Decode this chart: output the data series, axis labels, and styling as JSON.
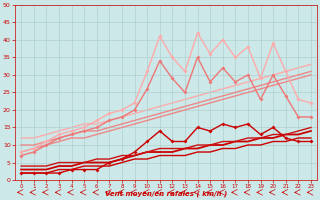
{
  "xlabel": "Vent moyen/en rafales ( km/h )",
  "ylabel": "",
  "xlim": [
    -0.5,
    23.5
  ],
  "ylim": [
    0,
    50
  ],
  "xticks": [
    0,
    1,
    2,
    3,
    4,
    5,
    6,
    7,
    8,
    9,
    10,
    11,
    12,
    13,
    14,
    15,
    16,
    17,
    18,
    19,
    20,
    21,
    22,
    23
  ],
  "yticks": [
    0,
    5,
    10,
    15,
    20,
    25,
    30,
    35,
    40,
    45,
    50
  ],
  "bg_color": "#cce8e8",
  "grid_color": "#b0d0d0",
  "lines": [
    {
      "y": [
        2,
        2,
        2,
        3,
        3,
        4,
        4,
        4,
        5,
        6,
        6,
        7,
        7,
        7,
        8,
        8,
        9,
        9,
        10,
        10,
        11,
        11,
        12,
        12
      ],
      "color": "#cc0000",
      "lw": 1.0,
      "marker": null,
      "ms": 0,
      "zorder": 3
    },
    {
      "y": [
        3,
        3,
        3,
        4,
        4,
        5,
        5,
        5,
        6,
        7,
        8,
        8,
        8,
        9,
        9,
        10,
        10,
        11,
        11,
        12,
        12,
        13,
        13,
        14
      ],
      "color": "#cc0000",
      "lw": 1.3,
      "marker": null,
      "ms": 0,
      "zorder": 3
    },
    {
      "y": [
        4,
        4,
        4,
        5,
        5,
        5,
        6,
        6,
        7,
        7,
        8,
        9,
        9,
        9,
        10,
        10,
        11,
        11,
        12,
        12,
        13,
        13,
        14,
        15
      ],
      "color": "#cc1111",
      "lw": 1.0,
      "marker": null,
      "ms": 0,
      "zorder": 3
    },
    {
      "y": [
        2,
        2,
        2,
        2,
        3,
        3,
        3,
        5,
        6,
        8,
        11,
        14,
        11,
        11,
        15,
        14,
        16,
        15,
        16,
        13,
        15,
        12,
        11,
        11
      ],
      "color": "#cc0000",
      "lw": 1.0,
      "marker": "D",
      "ms": 2.0,
      "zorder": 5
    },
    {
      "y": [
        8,
        9,
        10,
        11,
        12,
        12,
        13,
        14,
        15,
        16,
        17,
        18,
        19,
        20,
        21,
        22,
        23,
        24,
        25,
        26,
        27,
        28,
        29,
        30
      ],
      "color": "#ee8888",
      "lw": 1.0,
      "marker": null,
      "ms": 0,
      "zorder": 2
    },
    {
      "y": [
        10,
        10,
        11,
        12,
        13,
        14,
        14,
        15,
        16,
        17,
        18,
        19,
        20,
        21,
        22,
        23,
        24,
        25,
        26,
        27,
        28,
        29,
        30,
        31
      ],
      "color": "#ee8888",
      "lw": 1.0,
      "marker": null,
      "ms": 0,
      "zorder": 2
    },
    {
      "y": [
        12,
        12,
        13,
        14,
        15,
        16,
        16,
        17,
        18,
        19,
        20,
        21,
        22,
        23,
        24,
        25,
        26,
        27,
        28,
        29,
        30,
        31,
        32,
        33
      ],
      "color": "#ffaaaa",
      "lw": 1.0,
      "marker": null,
      "ms": 0,
      "zorder": 1
    },
    {
      "y": [
        8,
        9,
        11,
        13,
        14,
        15,
        17,
        19,
        20,
        22,
        31,
        41,
        35,
        31,
        42,
        36,
        40,
        35,
        38,
        29,
        39,
        31,
        23,
        22
      ],
      "color": "#ffaaaa",
      "lw": 1.0,
      "marker": "D",
      "ms": 2.0,
      "zorder": 5
    },
    {
      "y": [
        7,
        8,
        10,
        12,
        13,
        14,
        15,
        17,
        18,
        20,
        26,
        34,
        29,
        25,
        35,
        28,
        32,
        28,
        30,
        23,
        30,
        24,
        18,
        18
      ],
      "color": "#ee7777",
      "lw": 1.0,
      "marker": "D",
      "ms": 2.0,
      "zorder": 5
    }
  ],
  "arrow_color": "#cc0000"
}
